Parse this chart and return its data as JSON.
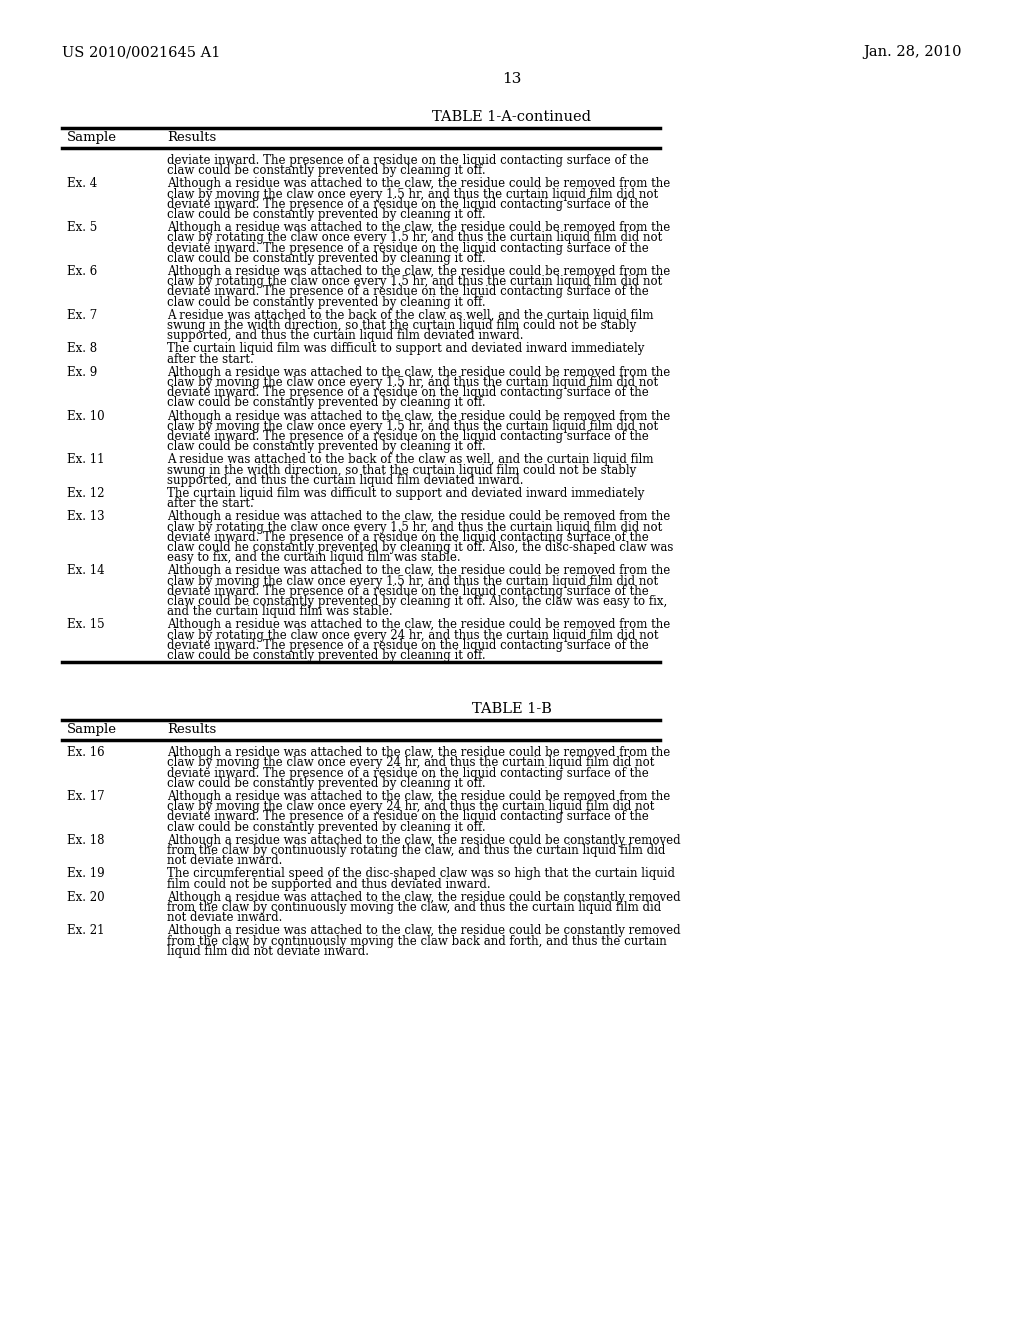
{
  "bg_color": "#ffffff",
  "header_left": "US 2010/0021645 A1",
  "header_right": "Jan. 28, 2010",
  "page_number": "13",
  "table1a_title": "TABLE 1-A-continued",
  "table1a_cols": [
    "Sample",
    "Results"
  ],
  "table1a_rows": [
    {
      "sample": "",
      "text": "deviate inward. The presence of a residue on the liquid contacting surface of the\nclaw could be constantly prevented by cleaning it off."
    },
    {
      "sample": "Ex. 4",
      "text": "Although a residue was attached to the claw, the residue could be removed from the\nclaw by moving the claw once every 1.5 hr, and thus the curtain liquid film did not\ndeviate inward. The presence of a residue on the liquid contacting surface of the\nclaw could be constantly prevented by cleaning it off."
    },
    {
      "sample": "Ex. 5",
      "text": "Although a residue was attached to the claw, the residue could be removed from the\nclaw by rotating the claw once every 1.5 hr, and thus the curtain liquid film did not\ndeviate inward. The presence of a residue on the liquid contacting surface of the\nclaw could be constantly prevented by cleaning it off."
    },
    {
      "sample": "Ex. 6",
      "text": "Although a residue was attached to the claw, the residue could be removed from the\nclaw by rotating the claw once every 1.5 hr, and thus the curtain liquid film did not\ndeviate inward. The presence of a residue on the liquid contacting surface of the\nclaw could be constantly prevented by cleaning it off."
    },
    {
      "sample": "Ex. 7",
      "text": "A residue was attached to the back of the claw as well, and the curtain liquid film\nswung in the width direction, so that the curtain liquid film could not be stably\nsupported, and thus the curtain liquid film deviated inward."
    },
    {
      "sample": "Ex. 8",
      "text": "The curtain liquid film was difficult to support and deviated inward immediately\nafter the start."
    },
    {
      "sample": "Ex. 9",
      "text": "Although a residue was attached to the claw, the residue could be removed from the\nclaw by moving the claw once every 1.5 hr, and thus the curtain liquid film did not\ndeviate inward. The presence of a residue on the liquid contacting surface of the\nclaw could be constantly prevented by cleaning it off."
    },
    {
      "sample": "Ex. 10",
      "text": "Although a residue was attached to the claw, the residue could be removed from the\nclaw by moving the claw once every 1.5 hr, and thus the curtain liquid film did not\ndeviate inward. The presence of a residue on the liquid contacting surface of the\nclaw could be constantly prevented by cleaning it off."
    },
    {
      "sample": "Ex. 11",
      "text": "A residue was attached to the back of the claw as well, and the curtain liquid film\nswung in the width direction, so that the curtain liquid film could not be stably\nsupported, and thus the curtain liquid film deviated inward."
    },
    {
      "sample": "Ex. 12",
      "text": "The curtain liquid film was difficult to support and deviated inward immediately\nafter the start."
    },
    {
      "sample": "Ex. 13",
      "text": "Although a residue was attached to the claw, the residue could be removed from the\nclaw by rotating the claw once every 1.5 hr, and thus the curtain liquid film did not\ndeviate inward. The presence of a residue on the liquid contacting surface of the\nclaw could he constantly prevented by cleaning it off. Also, the disc-shaped claw was\neasy to fix, and the curtain liquid film was stable."
    },
    {
      "sample": "Ex. 14",
      "text": "Although a residue was attached to the claw, the residue could be removed from the\nclaw by moving the claw once every 1.5 hr, and thus the curtain liquid film did not\ndeviate inward. The presence of a residue on the liquid contacting surface of the\nclaw could be constantly prevented by cleaning it off. Also, the claw was easy to fix,\nand the curtain liquid film was stable."
    },
    {
      "sample": "Ex. 15",
      "text": "Although a residue was attached to the claw, the residue could be removed from the\nclaw by rotating the claw once every 24 hr, and thus the curtain liquid film did not\ndeviate inward. The presence of a residue on the liquid contacting surface of the\nclaw could be constantly prevented by cleaning it off."
    }
  ],
  "table1b_title": "TABLE 1-B",
  "table1b_cols": [
    "Sample",
    "Results"
  ],
  "table1b_rows": [
    {
      "sample": "Ex. 16",
      "text": "Although a residue was attached to the claw, the residue could be removed from the\nclaw by moving the claw once every 24 hr, and thus the curtain liquid film did not\ndeviate inward. The presence of a residue on the liquid contacting surface of the\nclaw could be constantly prevented by cleaning it off."
    },
    {
      "sample": "Ex. 17",
      "text": "Although a residue was attached to the claw, the residue could be removed from the\nclaw by moving the claw once every 24 hr, and thus the curtain liquid film did not\ndeviate inward. The presence of a residue on the liquid contacting surface of the\nclaw could be constantly prevented by cleaning it off."
    },
    {
      "sample": "Ex. 18",
      "text": "Although a residue was attached to the claw, the residue could be constantly removed\nfrom the claw by continuously rotating the claw, and thus the curtain liquid film did\nnot deviate inward."
    },
    {
      "sample": "Ex. 19",
      "text": "The circumferential speed of the disc-shaped claw was so high that the curtain liquid\nfilm could not be supported and thus deviated inward."
    },
    {
      "sample": "Ex. 20",
      "text": "Although a residue was attached to the claw, the residue could be constantly removed\nfrom the claw by continuously moving the claw, and thus the curtain liquid film did\nnot deviate inward."
    },
    {
      "sample": "Ex. 21",
      "text": "Although a residue was attached to the claw, the residue could be constantly removed\nfrom the claw by continuously moving the claw back and forth, and thus the curtain\nliquid film did not deviate inward."
    }
  ]
}
